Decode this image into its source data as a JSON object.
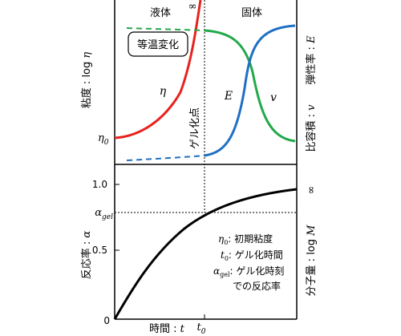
{
  "top_panel": {
    "region_left": "液体",
    "region_right": "固体",
    "infinity_mark": "∞",
    "box_label": "等温変化",
    "gel_point": "ゲル化点",
    "curve_eta": "η",
    "curve_E": "E",
    "curve_v": "v",
    "eta0_main": "η",
    "eta0_sub": "0",
    "left_axis_prefix": "粘度 : log ",
    "left_axis_var": "η",
    "right_axis_upper_prefix": "弾性率 : ",
    "right_axis_upper_var": "E",
    "right_axis_lower_prefix": "比容積 : ",
    "right_axis_lower_var": "v"
  },
  "bottom_panel": {
    "ytick_1": "1.0",
    "ytick_05": "0.5",
    "ytick_0": "0",
    "alpha_main": "α",
    "alpha_sub": "gel",
    "left_axis_prefix": "反応率 : ",
    "left_axis_var": "α",
    "right_axis_infinity": "∞",
    "right_axis_prefix": "分子量 : log ",
    "right_axis_var": "M",
    "x_axis_prefix": "時間 : ",
    "x_axis_var": "t",
    "t0_main": "t",
    "t0_sub": "0",
    "legend": [
      {
        "sym": "η",
        "sub": "0",
        "text": ": 初期粘度"
      },
      {
        "sym": "t",
        "sub": "0",
        "text": ": ゲル化時間"
      },
      {
        "sym": "α",
        "sub": "gel",
        "text": ": ゲル化時刻"
      },
      {
        "sym": "",
        "sub": "",
        "text": "での反応率"
      }
    ]
  },
  "colors": {
    "eta": "#e8231e",
    "E": "#1f6fc4",
    "v": "#21a94a",
    "alpha": "#000000"
  }
}
